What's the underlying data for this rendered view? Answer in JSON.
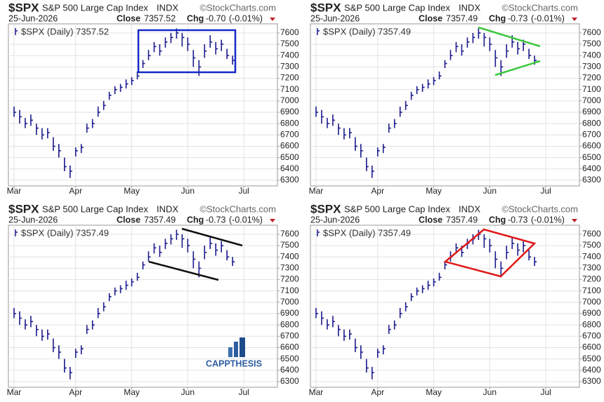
{
  "watermark": "CAPPTHESIS",
  "chart_data": [
    {
      "type": "ohlc",
      "symbol": "$SPX",
      "name": "S&P 500 Large Cap Index",
      "exchange": "INDX",
      "source": "©StockCharts.com",
      "date": "25-Jun-2026",
      "close_label": "Close",
      "close": 7357.52,
      "chg_label": "Chg",
      "chg": "-0.70",
      "chg_pct": "(-0.01%)",
      "legend": "$SPX (Daily) 7357.52",
      "color": "#1a1a8c",
      "high": [
        6950,
        6920,
        6850,
        6880,
        6800,
        6760,
        6760,
        6680,
        6620,
        6500,
        6430,
        6590,
        6620,
        6800,
        6840,
        6950,
        7000,
        7080,
        7130,
        7150,
        7190,
        7210,
        7260,
        7360,
        7450,
        7520,
        7500,
        7560,
        7600,
        7640,
        7600,
        7560,
        7450,
        7360,
        7500,
        7580,
        7520,
        7540,
        7460,
        7400
      ],
      "low": [
        6860,
        6800,
        6760,
        6780,
        6700,
        6660,
        6670,
        6560,
        6500,
        6380,
        6320,
        6510,
        6540,
        6720,
        6760,
        6860,
        6920,
        7010,
        7060,
        7080,
        7110,
        7140,
        7190,
        7290,
        7360,
        7430,
        7400,
        7470,
        7510,
        7550,
        7480,
        7440,
        7300,
        7220,
        7380,
        7470,
        7410,
        7440,
        7370,
        7320
      ],
      "values": [
        6900,
        6860,
        6800,
        6830,
        6760,
        6700,
        6720,
        6600,
        6560,
        6420,
        6380,
        6560,
        6590,
        6760,
        6800,
        6900,
        6960,
        7050,
        7100,
        7120,
        7150,
        7180,
        7220,
        7330,
        7400,
        7480,
        7440,
        7520,
        7560,
        7600,
        7560,
        7500,
        7380,
        7300,
        7440,
        7520,
        7460,
        7500,
        7400,
        7357.52
      ],
      "xlim": [
        -1,
        47
      ],
      "xticks": [
        {
          "value": 0,
          "label": "Mar"
        },
        {
          "value": 11,
          "label": "Apr"
        },
        {
          "value": 21,
          "label": "May"
        },
        {
          "value": 31,
          "label": "Jun"
        },
        {
          "value": 41,
          "label": "Jul"
        }
      ],
      "ylim": [
        6250,
        7680
      ],
      "yticks": [
        6300,
        6400,
        6500,
        6600,
        6700,
        6800,
        6900,
        7000,
        7100,
        7200,
        7300,
        7400,
        7500,
        7600
      ],
      "grid": true
    },
    {
      "type": "ohlc",
      "symbol": "$SPX",
      "name": "S&P 500 Large Cap Index",
      "exchange": "INDX",
      "source": "©StockCharts.com",
      "date": "25-Jun-2026",
      "close_label": "Close",
      "close": 7357.49,
      "chg_label": "Chg",
      "chg": "-0.73",
      "chg_pct": "(-0.01%)",
      "legend": "$SPX (Daily) 7357.49",
      "color": "#1a1a8c",
      "high": [
        6950,
        6920,
        6850,
        6880,
        6800,
        6760,
        6760,
        6680,
        6620,
        6500,
        6430,
        6590,
        6620,
        6800,
        6840,
        6950,
        7000,
        7080,
        7130,
        7150,
        7190,
        7210,
        7260,
        7360,
        7450,
        7520,
        7500,
        7560,
        7600,
        7640,
        7600,
        7560,
        7450,
        7360,
        7500,
        7580,
        7520,
        7540,
        7460,
        7400
      ],
      "low": [
        6860,
        6800,
        6760,
        6780,
        6700,
        6660,
        6670,
        6560,
        6500,
        6380,
        6320,
        6510,
        6540,
        6720,
        6760,
        6860,
        6920,
        7010,
        7060,
        7080,
        7110,
        7140,
        7190,
        7290,
        7360,
        7430,
        7400,
        7470,
        7510,
        7550,
        7480,
        7440,
        7300,
        7220,
        7380,
        7470,
        7410,
        7440,
        7370,
        7320
      ],
      "values": [
        6900,
        6860,
        6800,
        6830,
        6760,
        6700,
        6720,
        6600,
        6560,
        6420,
        6380,
        6560,
        6590,
        6760,
        6800,
        6900,
        6960,
        7050,
        7100,
        7120,
        7150,
        7180,
        7220,
        7330,
        7400,
        7480,
        7440,
        7520,
        7560,
        7600,
        7560,
        7500,
        7380,
        7300,
        7440,
        7520,
        7460,
        7500,
        7400,
        7357.49
      ],
      "xlim": [
        -1,
        47
      ],
      "xticks": [
        {
          "value": 0,
          "label": "Mar"
        },
        {
          "value": 11,
          "label": "Apr"
        },
        {
          "value": 21,
          "label": "May"
        },
        {
          "value": 31,
          "label": "Jun"
        },
        {
          "value": 41,
          "label": "Jul"
        }
      ],
      "ylim": [
        6250,
        7680
      ],
      "yticks": [
        6300,
        6400,
        6500,
        6600,
        6700,
        6800,
        6900,
        7000,
        7100,
        7200,
        7300,
        7400,
        7500,
        7600
      ],
      "grid": true
    },
    {
      "type": "ohlc",
      "symbol": "$SPX",
      "name": "S&P 500 Large Cap Index",
      "exchange": "INDX",
      "source": "©StockCharts.com",
      "date": "25-Jun-2026",
      "close_label": "Close",
      "close": 7357.49,
      "chg_label": "Chg",
      "chg": "-0.73",
      "chg_pct": "(-0.01%)",
      "legend": "$SPX (Daily) 7357.49",
      "color": "#1a1a8c",
      "high": [
        6950,
        6920,
        6850,
        6880,
        6800,
        6760,
        6760,
        6680,
        6620,
        6500,
        6430,
        6590,
        6620,
        6800,
        6840,
        6950,
        7000,
        7080,
        7130,
        7150,
        7190,
        7210,
        7260,
        7360,
        7450,
        7520,
        7500,
        7560,
        7600,
        7640,
        7600,
        7560,
        7450,
        7360,
        7500,
        7580,
        7520,
        7540,
        7460,
        7400
      ],
      "low": [
        6860,
        6800,
        6760,
        6780,
        6700,
        6660,
        6670,
        6560,
        6500,
        6380,
        6320,
        6510,
        6540,
        6720,
        6760,
        6860,
        6920,
        7010,
        7060,
        7080,
        7110,
        7140,
        7190,
        7290,
        7360,
        7430,
        7400,
        7470,
        7510,
        7550,
        7480,
        7440,
        7300,
        7220,
        7380,
        7470,
        7410,
        7440,
        7370,
        7320
      ],
      "values": [
        6900,
        6860,
        6800,
        6830,
        6760,
        6700,
        6720,
        6600,
        6560,
        6420,
        6380,
        6560,
        6590,
        6760,
        6800,
        6900,
        6960,
        7050,
        7100,
        7120,
        7150,
        7180,
        7220,
        7330,
        7400,
        7480,
        7440,
        7520,
        7560,
        7600,
        7560,
        7500,
        7380,
        7300,
        7440,
        7520,
        7460,
        7500,
        7400,
        7357.49
      ],
      "xlim": [
        -1,
        47
      ],
      "xticks": [
        {
          "value": 0,
          "label": "Mar"
        },
        {
          "value": 11,
          "label": "Apr"
        },
        {
          "value": 21,
          "label": "May"
        },
        {
          "value": 31,
          "label": "Jun"
        },
        {
          "value": 41,
          "label": "Jul"
        }
      ],
      "ylim": [
        6250,
        7680
      ],
      "yticks": [
        6300,
        6400,
        6500,
        6600,
        6700,
        6800,
        6900,
        7000,
        7100,
        7200,
        7300,
        7400,
        7500,
        7600
      ],
      "grid": true
    },
    {
      "type": "ohlc",
      "symbol": "$SPX",
      "name": "S&P 500 Large Cap Index",
      "exchange": "INDX",
      "source": "©StockCharts.com",
      "date": "25-Jun-2026",
      "close_label": "Close",
      "close": 7357.49,
      "chg_label": "Chg",
      "chg": "-0.73",
      "chg_pct": "(-0.01%)",
      "legend": "$SPX (Daily) 7357.49",
      "color": "#1a1a8c",
      "high": [
        6950,
        6920,
        6850,
        6880,
        6800,
        6760,
        6760,
        6680,
        6620,
        6500,
        6430,
        6590,
        6620,
        6800,
        6840,
        6950,
        7000,
        7080,
        7130,
        7150,
        7190,
        7210,
        7260,
        7360,
        7450,
        7520,
        7500,
        7560,
        7600,
        7640,
        7600,
        7560,
        7450,
        7360,
        7500,
        7580,
        7520,
        7540,
        7460,
        7400
      ],
      "low": [
        6860,
        6800,
        6760,
        6780,
        6700,
        6660,
        6670,
        6560,
        6500,
        6380,
        6320,
        6510,
        6540,
        6720,
        6760,
        6860,
        6920,
        7010,
        7060,
        7080,
        7110,
        7140,
        7190,
        7290,
        7360,
        7430,
        7400,
        7470,
        7510,
        7550,
        7480,
        7440,
        7300,
        7220,
        7380,
        7470,
        7410,
        7440,
        7370,
        7320
      ],
      "values": [
        6900,
        6860,
        6800,
        6830,
        6760,
        6700,
        6720,
        6600,
        6560,
        6420,
        6380,
        6560,
        6590,
        6760,
        6800,
        6900,
        6960,
        7050,
        7100,
        7120,
        7150,
        7180,
        7220,
        7330,
        7400,
        7480,
        7440,
        7520,
        7560,
        7600,
        7560,
        7500,
        7380,
        7300,
        7440,
        7520,
        7460,
        7500,
        7400,
        7357.49
      ],
      "xlim": [
        -1,
        47
      ],
      "xticks": [
        {
          "value": 0,
          "label": "Mar"
        },
        {
          "value": 11,
          "label": "Apr"
        },
        {
          "value": 21,
          "label": "May"
        },
        {
          "value": 31,
          "label": "Jun"
        },
        {
          "value": 41,
          "label": "Jul"
        }
      ],
      "ylim": [
        6250,
        7680
      ],
      "yticks": [
        6300,
        6400,
        6500,
        6600,
        6700,
        6800,
        6900,
        7000,
        7100,
        7200,
        7300,
        7400,
        7500,
        7600
      ],
      "grid": true
    }
  ]
}
